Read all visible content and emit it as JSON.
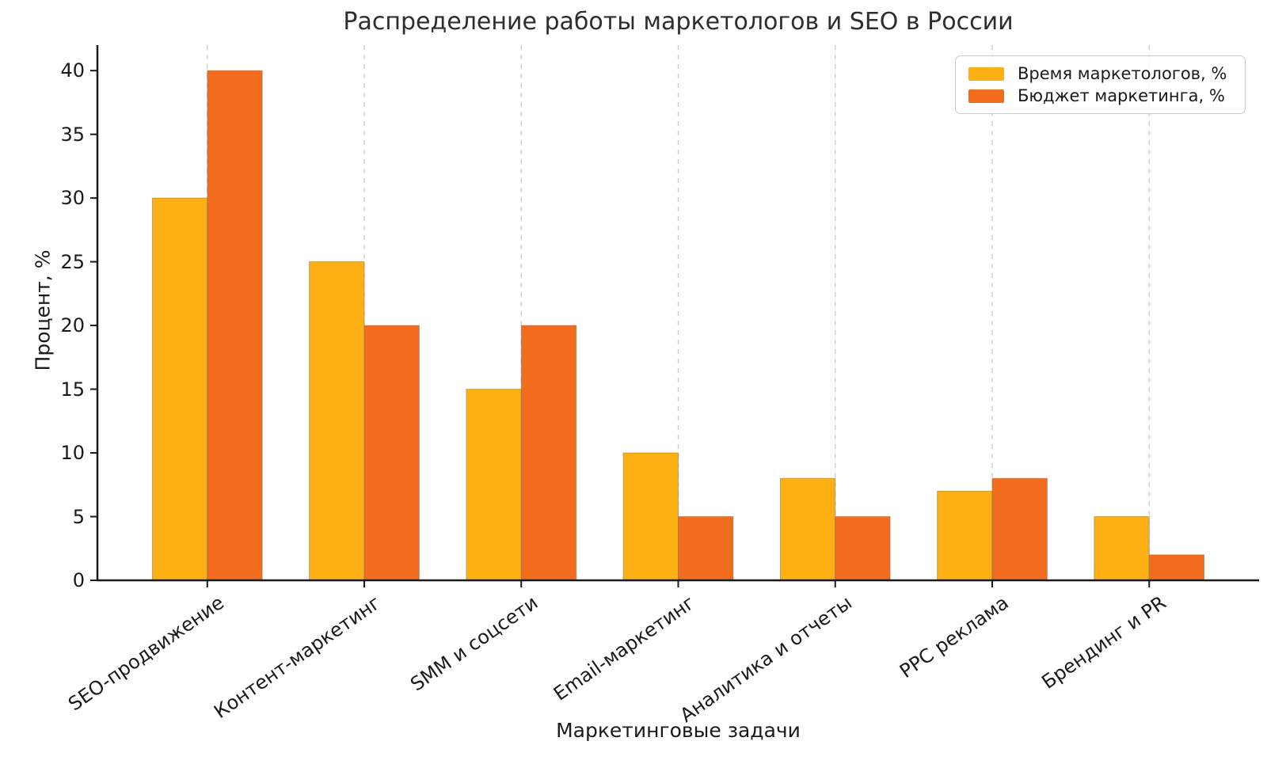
{
  "chart_data": {
    "type": "bar",
    "title": "Распределение работы маркетологов и SEO в России",
    "xlabel": "Маркетинговые задачи",
    "ylabel": "Процент, %",
    "categories": [
      "SEO-продвижение",
      "Контент-маркетинг",
      "SMM и соцсети",
      "Email-маркетинг",
      "Аналитика и отчеты",
      "PPC реклама",
      "Брендинг и PR"
    ],
    "series": [
      {
        "name": "Время маркетологов, %",
        "color": "#FDB013",
        "values": [
          30,
          25,
          15,
          10,
          8,
          7,
          5
        ]
      },
      {
        "name": "Бюджет маркетинга, %",
        "color": "#F26C1E",
        "values": [
          40,
          20,
          20,
          5,
          5,
          8,
          2
        ]
      }
    ],
    "ylim": [
      0,
      42
    ],
    "yticks": [
      0,
      5,
      10,
      15,
      20,
      25,
      30,
      35,
      40
    ],
    "bar_width": 0.35,
    "xtick_rotation": 35,
    "grid": "vertical-dashed-at-category-centers",
    "legend_position": "upper right"
  }
}
